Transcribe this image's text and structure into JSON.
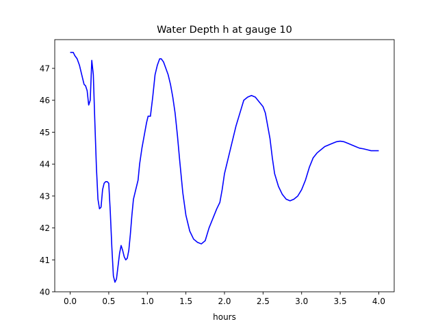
{
  "chart_data": {
    "type": "line",
    "title": "Water Depth h at gauge 10",
    "xlabel": "hours",
    "ylabel": "",
    "xlim": [
      -0.2,
      4.2
    ],
    "ylim": [
      40.0,
      47.9
    ],
    "xticks": [
      0.0,
      0.5,
      1.0,
      1.5,
      2.0,
      2.5,
      3.0,
      3.5,
      4.0
    ],
    "xtick_labels": [
      "0.0",
      "0.5",
      "1.0",
      "1.5",
      "2.0",
      "2.5",
      "3.0",
      "3.5",
      "4.0"
    ],
    "yticks": [
      40,
      41,
      42,
      43,
      44,
      45,
      46,
      47
    ],
    "ytick_labels": [
      "40",
      "41",
      "42",
      "43",
      "44",
      "45",
      "46",
      "47"
    ],
    "grid": false,
    "line_color": "#0000ff",
    "series": [
      {
        "x": [
          0.0,
          0.04,
          0.06,
          0.09,
          0.12,
          0.15,
          0.18,
          0.2,
          0.22,
          0.24,
          0.26,
          0.28,
          0.3,
          0.32,
          0.34,
          0.36,
          0.38,
          0.4,
          0.42,
          0.44,
          0.46,
          0.48,
          0.5,
          0.52,
          0.54,
          0.56,
          0.58,
          0.6,
          0.62,
          0.64,
          0.66,
          0.68,
          0.7,
          0.72,
          0.74,
          0.76,
          0.78,
          0.8,
          0.82,
          0.85,
          0.88,
          0.9,
          0.93,
          0.96,
          0.99,
          1.01,
          1.04,
          1.07,
          1.1,
          1.13,
          1.16,
          1.18,
          1.21,
          1.24,
          1.27,
          1.3,
          1.33,
          1.36,
          1.39,
          1.42,
          1.46,
          1.5,
          1.55,
          1.6,
          1.65,
          1.7,
          1.75,
          1.8,
          1.85,
          1.9,
          1.94,
          1.97,
          2.0,
          2.05,
          2.1,
          2.15,
          2.2,
          2.25,
          2.3,
          2.35,
          2.4,
          2.45,
          2.5,
          2.53,
          2.56,
          2.59,
          2.62,
          2.65,
          2.7,
          2.75,
          2.8,
          2.85,
          2.9,
          2.95,
          3.0,
          3.05,
          3.1,
          3.15,
          3.2,
          3.25,
          3.3,
          3.35,
          3.4,
          3.45,
          3.5,
          3.55,
          3.6,
          3.65,
          3.7,
          3.75,
          3.8,
          3.85,
          3.9,
          3.95,
          4.0
        ],
        "y": [
          47.5,
          47.5,
          47.4,
          47.3,
          47.1,
          46.8,
          46.5,
          46.45,
          46.3,
          45.85,
          46.0,
          47.25,
          46.8,
          45.3,
          43.9,
          42.9,
          42.6,
          42.65,
          43.2,
          43.4,
          43.45,
          43.45,
          43.4,
          42.5,
          41.4,
          40.5,
          40.3,
          40.4,
          40.8,
          41.2,
          41.45,
          41.3,
          41.1,
          41.0,
          41.05,
          41.3,
          41.8,
          42.4,
          42.9,
          43.2,
          43.5,
          44.0,
          44.5,
          44.9,
          45.3,
          45.5,
          45.5,
          46.1,
          46.8,
          47.1,
          47.3,
          47.3,
          47.2,
          47.0,
          46.8,
          46.5,
          46.1,
          45.6,
          44.9,
          44.1,
          43.1,
          42.4,
          41.9,
          41.65,
          41.55,
          41.5,
          41.6,
          42.0,
          42.3,
          42.6,
          42.8,
          43.2,
          43.7,
          44.2,
          44.7,
          45.2,
          45.6,
          46.0,
          46.1,
          46.15,
          46.1,
          45.95,
          45.8,
          45.6,
          45.2,
          44.8,
          44.2,
          43.7,
          43.3,
          43.05,
          42.9,
          42.85,
          42.9,
          43.0,
          43.2,
          43.5,
          43.9,
          44.2,
          44.35,
          44.45,
          44.55,
          44.6,
          44.65,
          44.7,
          44.72,
          44.7,
          44.65,
          44.6,
          44.55,
          44.5,
          44.48,
          44.45,
          44.42,
          44.42,
          44.42
        ]
      }
    ]
  }
}
